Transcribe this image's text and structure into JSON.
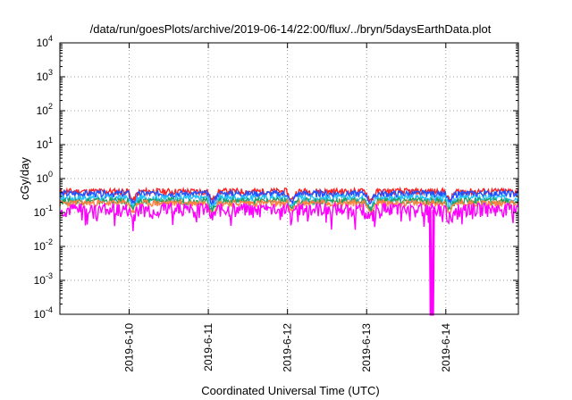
{
  "chart_data": {
    "type": "line",
    "title": "/data/run/goesPlots/archive/2019-06-14/22:00/flux/../bryn/5daysEarthData.plot",
    "xlabel": "Coordinated Universal Time (UTC)",
    "ylabel": "cGy/day",
    "y_scale": "log",
    "ylim": [
      0.0001,
      10000
    ],
    "y_ticks": [
      {
        "base": "10",
        "exp": "4",
        "value": 10000
      },
      {
        "base": "10",
        "exp": "3",
        "value": 1000
      },
      {
        "base": "10",
        "exp": "2",
        "value": 100
      },
      {
        "base": "10",
        "exp": "1",
        "value": 10
      },
      {
        "base": "10",
        "exp": "0",
        "value": 1
      },
      {
        "base": "10",
        "exp": "-1",
        "value": 0.1
      },
      {
        "base": "10",
        "exp": "-2",
        "value": 0.01
      },
      {
        "base": "10",
        "exp": "-3",
        "value": 0.001
      },
      {
        "base": "10",
        "exp": "-4",
        "value": 0.0001
      }
    ],
    "x_range_days": [
      "2019-06-09 03:00",
      "2019-06-14 22:00"
    ],
    "x_tick_labels": [
      "2019-6-10",
      "2019-6-11",
      "2019-6-12",
      "2019-6-13",
      "2019-6-14"
    ],
    "grid": true,
    "legend": "none",
    "series": [
      {
        "color": "#ff2020",
        "level": 0.42
      },
      {
        "color": "#2050ff",
        "level": 0.36
      },
      {
        "color": "#20c0ff",
        "level": 0.27
      },
      {
        "color": "#20a060",
        "level": 0.22
      },
      {
        "color": "#ff8040",
        "level": 0.19
      },
      {
        "color": "#ff00ff",
        "level": 0.13
      }
    ],
    "notable_dip": {
      "time": "2019-06-13 19:30",
      "value": 0.0001
    }
  }
}
